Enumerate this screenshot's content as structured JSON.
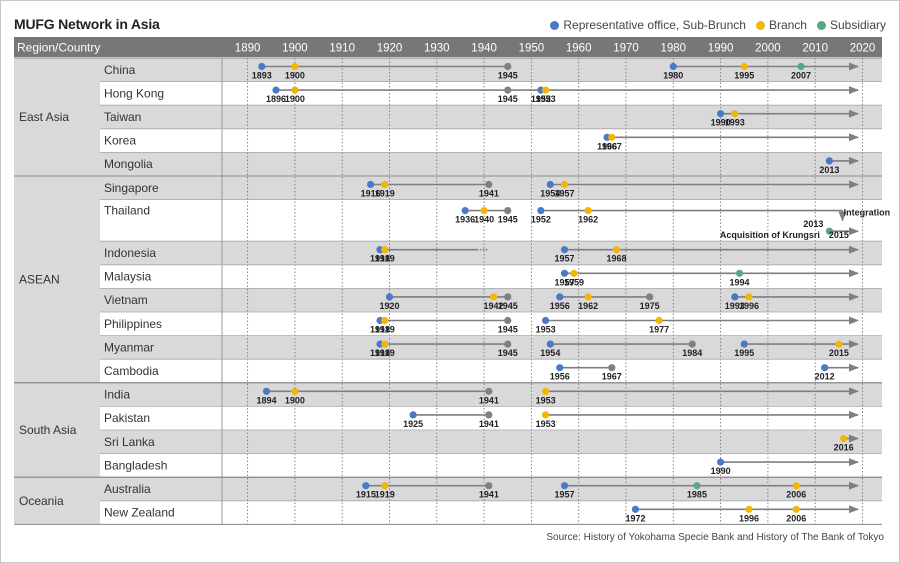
{
  "title": "MUFG Network in Asia",
  "legend": [
    {
      "label": "Representative office, Sub-Brunch",
      "color": "#4a7ac7",
      "icon": "blue-dot-icon"
    },
    {
      "label": "Branch",
      "color": "#f2b705",
      "icon": "yellow-dot-icon"
    },
    {
      "label": "Subsidiary",
      "color": "#5aa67f",
      "icon": "green-dot-icon"
    }
  ],
  "source": "Source: History of Yokohama Specie Bank and History of The Bank of Tokyo",
  "colors": {
    "rep": "#4a7ac7",
    "branch": "#f2b705",
    "sub": "#5aa67f",
    "closed": "#808080",
    "header": "#777777",
    "shade": "#d9d9dc",
    "arrow": "#7f7f7f"
  },
  "chart_data": {
    "type": "timeline",
    "header_label": "Region/Country",
    "x_range": [
      1885,
      2022
    ],
    "ticks": [
      1890,
      1900,
      1910,
      1920,
      1930,
      1940,
      1950,
      1960,
      1970,
      1980,
      1990,
      2000,
      2010,
      2020
    ],
    "regions": [
      {
        "name": "East Asia",
        "countries": [
          {
            "name": "China",
            "segments": [
              [
                1893,
                1945,
                "solid"
              ],
              [
                1980,
                2020,
                "arrow"
              ]
            ],
            "events": [
              [
                1893,
                "rep",
                "1893"
              ],
              [
                1900,
                "branch",
                "1900"
              ],
              [
                1945,
                "closed",
                "1945"
              ],
              [
                1980,
                "rep",
                "1980"
              ],
              [
                1995,
                "branch",
                "1995"
              ],
              [
                2007,
                "sub",
                "2007"
              ]
            ]
          },
          {
            "name": "Hong Kong",
            "segments": [
              [
                1896,
                2020,
                "arrow"
              ]
            ],
            "events": [
              [
                1896,
                "rep",
                "1896"
              ],
              [
                1900,
                "branch",
                "1900"
              ],
              [
                1945,
                "closed",
                "1945"
              ],
              [
                1952,
                "rep",
                "1952"
              ],
              [
                1953,
                "branch",
                "1953"
              ]
            ]
          },
          {
            "name": "Taiwan",
            "segments": [
              [
                1990,
                2020,
                "arrow"
              ]
            ],
            "events": [
              [
                1990,
                "rep",
                "1990"
              ],
              [
                1993,
                "branch",
                "1993"
              ]
            ]
          },
          {
            "name": "Korea",
            "segments": [
              [
                1966,
                2020,
                "arrow"
              ]
            ],
            "events": [
              [
                1966,
                "rep",
                "1966"
              ],
              [
                1967,
                "branch",
                "1967"
              ]
            ]
          },
          {
            "name": "Mongolia",
            "segments": [
              [
                2013,
                2020,
                "arrow"
              ]
            ],
            "events": [
              [
                2013,
                "rep",
                "2013"
              ]
            ]
          }
        ]
      },
      {
        "name": "ASEAN",
        "countries": [
          {
            "name": "Singapore",
            "segments": [
              [
                1916,
                1941,
                "solid"
              ],
              [
                1954,
                2020,
                "arrow"
              ]
            ],
            "events": [
              [
                1916,
                "rep",
                "1916"
              ],
              [
                1919,
                "branch",
                "1919"
              ],
              [
                1941,
                "closed",
                "1941"
              ],
              [
                1954,
                "rep",
                "1954"
              ],
              [
                1957,
                "branch",
                "1957"
              ]
            ]
          },
          {
            "name": "Thailand",
            "segments": [
              [
                1936,
                1945,
                "solid"
              ],
              [
                1952,
                2015,
                "integration"
              ],
              [
                2013,
                2020,
                "arrow"
              ]
            ],
            "events": [
              [
                1936,
                "rep",
                "1936"
              ],
              [
                1940,
                "branch",
                "1940"
              ],
              [
                1945,
                "closed",
                "1945"
              ],
              [
                1952,
                "rep",
                "1952"
              ],
              [
                1962,
                "branch",
                "1962"
              ],
              [
                2013,
                "sub",
                "2013"
              ]
            ],
            "notes": {
              "integration": "Integration",
              "acquisition": "Acquisition of Krungsri",
              "integration_year": "2015"
            }
          },
          {
            "name": "Indonesia",
            "segments": [
              [
                1918,
                1941,
                "dotted"
              ],
              [
                1957,
                2020,
                "arrow"
              ]
            ],
            "events": [
              [
                1918,
                "rep",
                "1918"
              ],
              [
                1919,
                "branch",
                "1919"
              ],
              [
                1957,
                "rep",
                "1957"
              ],
              [
                1968,
                "branch",
                "1968"
              ]
            ]
          },
          {
            "name": "Malaysia",
            "segments": [
              [
                1957,
                2020,
                "arrow"
              ]
            ],
            "events": [
              [
                1957,
                "rep",
                "1957"
              ],
              [
                1959,
                "branch",
                "1959"
              ],
              [
                1994,
                "sub",
                "1994"
              ]
            ]
          },
          {
            "name": "Vietnam",
            "segments": [
              [
                1920,
                1945,
                "solid"
              ],
              [
                1956,
                1975,
                "solid"
              ],
              [
                1993,
                2020,
                "arrow"
              ]
            ],
            "events": [
              [
                1920,
                "rep",
                "1920"
              ],
              [
                1942,
                "branch",
                "1942"
              ],
              [
                1945,
                "closed",
                "1945"
              ],
              [
                1956,
                "rep",
                "1956"
              ],
              [
                1962,
                "branch",
                "1962"
              ],
              [
                1975,
                "closed",
                "1975"
              ],
              [
                1993,
                "rep",
                "1993"
              ],
              [
                1996,
                "branch",
                "1996"
              ]
            ]
          },
          {
            "name": "Philippines",
            "segments": [
              [
                1918,
                1945,
                "solid"
              ],
              [
                1953,
                2020,
                "arrow"
              ]
            ],
            "events": [
              [
                1918,
                "rep",
                "1918"
              ],
              [
                1919,
                "branch",
                "1919"
              ],
              [
                1945,
                "closed",
                "1945"
              ],
              [
                1953,
                "rep",
                "1953"
              ],
              [
                1977,
                "branch",
                "1977"
              ]
            ]
          },
          {
            "name": "Myanmar",
            "segments": [
              [
                1918,
                1945,
                "solid"
              ],
              [
                1954,
                1984,
                "solid"
              ],
              [
                1995,
                2020,
                "arrow"
              ]
            ],
            "events": [
              [
                1918,
                "rep",
                "1918"
              ],
              [
                1919,
                "branch",
                "1919"
              ],
              [
                1945,
                "closed",
                "1945"
              ],
              [
                1954,
                "rep",
                "1954"
              ],
              [
                1984,
                "closed",
                "1984"
              ],
              [
                1995,
                "rep",
                "1995"
              ],
              [
                2015,
                "branch",
                "2015"
              ]
            ]
          },
          {
            "name": "Cambodia",
            "segments": [
              [
                1956,
                1967,
                "solid"
              ],
              [
                2012,
                2020,
                "arrow"
              ]
            ],
            "events": [
              [
                1956,
                "rep",
                "1956"
              ],
              [
                1967,
                "closed",
                "1967"
              ],
              [
                2012,
                "rep",
                "2012"
              ]
            ]
          }
        ]
      },
      {
        "name": "South Asia",
        "countries": [
          {
            "name": "India",
            "segments": [
              [
                1894,
                1941,
                "solid"
              ],
              [
                1953,
                2020,
                "arrow"
              ]
            ],
            "events": [
              [
                1894,
                "rep",
                "1894"
              ],
              [
                1900,
                "branch",
                "1900"
              ],
              [
                1941,
                "closed",
                "1941"
              ],
              [
                1953,
                "branch",
                "1953"
              ]
            ]
          },
          {
            "name": "Pakistan",
            "segments": [
              [
                1925,
                1941,
                "solid"
              ],
              [
                1953,
                2020,
                "arrow"
              ]
            ],
            "events": [
              [
                1925,
                "rep",
                "1925"
              ],
              [
                1941,
                "closed",
                "1941"
              ],
              [
                1953,
                "branch",
                "1953"
              ]
            ]
          },
          {
            "name": "Sri Lanka",
            "segments": [
              [
                2016,
                2020,
                "arrow"
              ]
            ],
            "events": [
              [
                2016,
                "branch",
                "2016"
              ]
            ]
          },
          {
            "name": "Bangladesh",
            "segments": [
              [
                1990,
                2020,
                "arrow"
              ]
            ],
            "events": [
              [
                1990,
                "rep",
                "1990"
              ]
            ]
          }
        ]
      },
      {
        "name": "Oceania",
        "countries": [
          {
            "name": "Australia",
            "segments": [
              [
                1915,
                1941,
                "solid"
              ],
              [
                1957,
                2020,
                "arrow"
              ]
            ],
            "events": [
              [
                1915,
                "rep",
                "1915"
              ],
              [
                1919,
                "branch",
                "1919"
              ],
              [
                1941,
                "closed",
                "1941"
              ],
              [
                1957,
                "rep",
                "1957"
              ],
              [
                1985,
                "sub",
                "1985"
              ],
              [
                2006,
                "branch",
                "2006"
              ]
            ]
          },
          {
            "name": "New Zealand",
            "segments": [
              [
                1972,
                2020,
                "arrow"
              ]
            ],
            "events": [
              [
                1972,
                "rep",
                "1972"
              ],
              [
                1996,
                "branch",
                "1996"
              ],
              [
                2006,
                "branch",
                "2006"
              ]
            ]
          }
        ]
      }
    ]
  }
}
